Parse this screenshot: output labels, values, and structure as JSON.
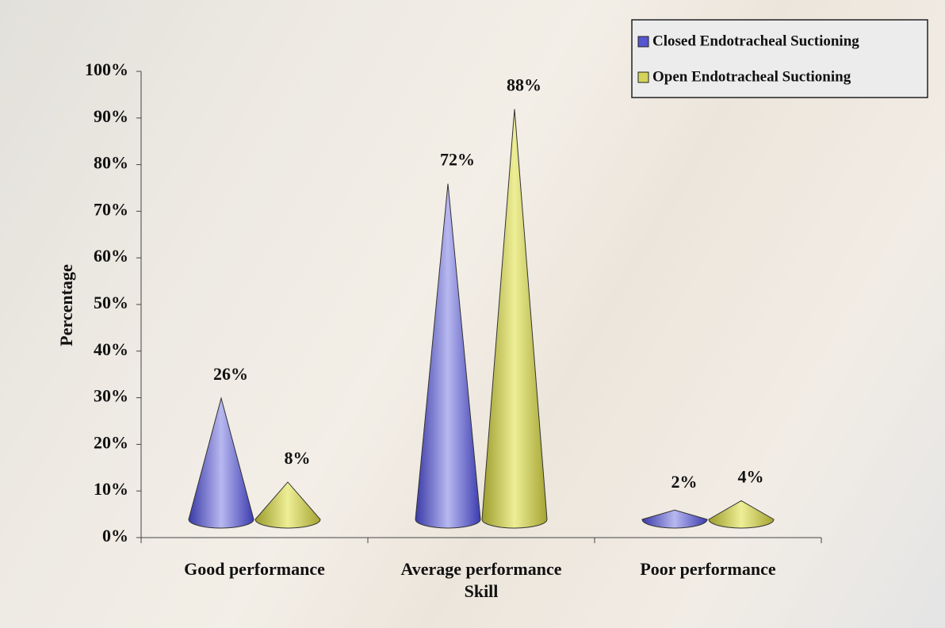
{
  "chart_data": {
    "type": "cone",
    "x_label": "Skill",
    "y_label": "Percentage",
    "categories": [
      "Good performance",
      "Average performance",
      "Poor performance"
    ],
    "series": [
      {
        "name": "Closed Endotracheal Suctioning",
        "color": "#5656d0",
        "values": [
          26,
          72,
          2
        ],
        "value_labels": [
          "26%",
          "72%",
          "2%"
        ]
      },
      {
        "name": "Open Endotracheal Suctioning",
        "color": "#d4d45a",
        "values": [
          8,
          88,
          4
        ],
        "value_labels": [
          "8%",
          "88%",
          "4%"
        ]
      }
    ],
    "ylim": [
      0,
      100
    ],
    "yticks": [
      {
        "value": 0,
        "label": "0%"
      },
      {
        "value": 10,
        "label": "10%"
      },
      {
        "value": 20,
        "label": "20%"
      },
      {
        "value": 30,
        "label": "30%"
      },
      {
        "value": 40,
        "label": "40%"
      },
      {
        "value": 50,
        "label": "50%"
      },
      {
        "value": 60,
        "label": "60%"
      },
      {
        "value": 70,
        "label": "70%"
      },
      {
        "value": 80,
        "label": "80%"
      },
      {
        "value": 90,
        "label": "90%"
      },
      {
        "value": 100,
        "label": "100%"
      }
    ],
    "legend": "top-right"
  }
}
